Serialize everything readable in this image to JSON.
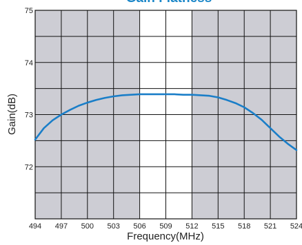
{
  "chart_data": {
    "type": "line",
    "title": "Gain Flatness",
    "xlabel": "Frequency(MHz)",
    "ylabel": "Gain(dB)",
    "xlim": [
      494,
      524
    ],
    "ylim": [
      71.0,
      75.0
    ],
    "x_ticks": [
      494,
      497,
      500,
      503,
      506,
      509,
      512,
      515,
      518,
      521,
      524
    ],
    "y_ticks": [
      72,
      73,
      74,
      75
    ],
    "grid": true,
    "highlight_band": [
      506,
      512
    ],
    "colors": {
      "line": "#1a7ec8",
      "plot_fill": "#cdcdd4",
      "band_fill": "#ffffff",
      "grid": "#111111",
      "title": "#1a86c8"
    },
    "series": [
      {
        "x": [
          494,
          495,
          496,
          497,
          498,
          499,
          500,
          501,
          502,
          503,
          504,
          505,
          506,
          507,
          508,
          509,
          510,
          511,
          512,
          513,
          514,
          515,
          516,
          517,
          518,
          519,
          520,
          521,
          522,
          523,
          524
        ],
        "y": [
          72.52,
          72.74,
          72.89,
          73.0,
          73.09,
          73.17,
          73.23,
          73.28,
          73.32,
          73.35,
          73.37,
          73.38,
          73.39,
          73.39,
          73.39,
          73.39,
          73.39,
          73.38,
          73.38,
          73.37,
          73.36,
          73.33,
          73.28,
          73.22,
          73.14,
          73.03,
          72.9,
          72.74,
          72.58,
          72.44,
          72.32
        ]
      }
    ]
  }
}
